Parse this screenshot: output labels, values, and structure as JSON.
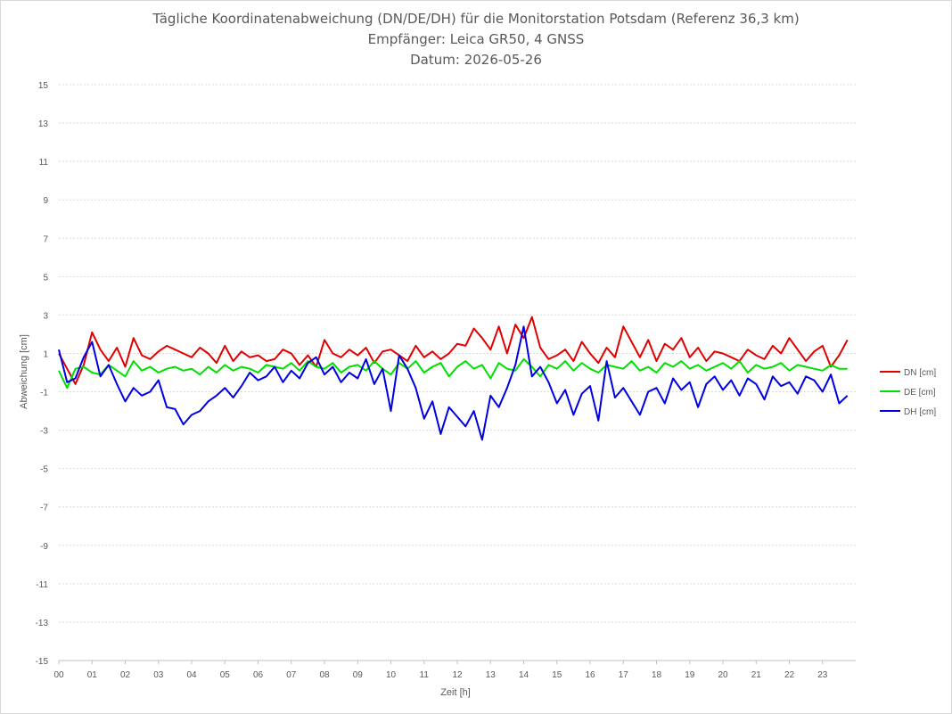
{
  "chart_data": {
    "type": "line",
    "title_lines": [
      "Tägliche Koordinatenabweichung (DN/DE/DH) für die Monitorstation Potsdam (Referenz 36,3 km)",
      "Empfänger: Leica GR50, 4 GNSS",
      "Datum: 2026-05-26"
    ],
    "xlabel": "Zeit [h]",
    "ylabel": "Abweichung [cm]",
    "xlim": [
      0,
      24
    ],
    "ylim": [
      -15,
      15
    ],
    "x_ticks": [
      "00",
      "01",
      "02",
      "03",
      "04",
      "05",
      "06",
      "07",
      "08",
      "09",
      "10",
      "11",
      "12",
      "13",
      "14",
      "15",
      "16",
      "17",
      "18",
      "19",
      "20",
      "21",
      "22",
      "23"
    ],
    "y_ticks": [
      15,
      13,
      11,
      9,
      7,
      5,
      3,
      1,
      -1,
      -3,
      -5,
      -7,
      -9,
      -11,
      -13,
      -15
    ],
    "grid": "horizontal dashed",
    "legend_position": "right",
    "x_hours": [
      0,
      0.25,
      0.5,
      0.75,
      1,
      1.25,
      1.5,
      1.75,
      2,
      2.25,
      2.5,
      2.75,
      3,
      3.25,
      3.5,
      3.75,
      4,
      4.25,
      4.5,
      4.75,
      5,
      5.25,
      5.5,
      5.75,
      6,
      6.25,
      6.5,
      6.75,
      7,
      7.25,
      7.5,
      7.75,
      8,
      8.25,
      8.5,
      8.75,
      9,
      9.25,
      9.5,
      9.75,
      10,
      10.25,
      10.5,
      10.75,
      11,
      11.25,
      11.5,
      11.75,
      12,
      12.25,
      12.5,
      12.75,
      13,
      13.25,
      13.5,
      13.75,
      14,
      14.25,
      14.5,
      14.75,
      15,
      15.25,
      15.5,
      15.75,
      16,
      16.25,
      16.5,
      16.75,
      17,
      17.25,
      17.5,
      17.75,
      18,
      18.25,
      18.5,
      18.75,
      19,
      19.25,
      19.5,
      19.75,
      20,
      20.25,
      20.5,
      20.75,
      21,
      21.25,
      21.5,
      21.75,
      22,
      22.25,
      22.5,
      22.75,
      23,
      23.25,
      23.5,
      23.75
    ],
    "series": [
      {
        "name": "DN [cm]",
        "color": "#e00000",
        "values": [
          1.0,
          0.2,
          -0.6,
          0.4,
          2.1,
          1.2,
          0.6,
          1.3,
          0.3,
          1.8,
          0.9,
          0.7,
          1.1,
          1.4,
          1.2,
          1.0,
          0.8,
          1.3,
          1.0,
          0.5,
          1.4,
          0.6,
          1.1,
          0.8,
          0.9,
          0.6,
          0.7,
          1.2,
          1.0,
          0.4,
          0.9,
          0.3,
          1.7,
          1.0,
          0.8,
          1.2,
          0.9,
          1.3,
          0.5,
          1.1,
          1.2,
          0.9,
          0.6,
          1.4,
          0.8,
          1.1,
          0.7,
          1.0,
          1.5,
          1.4,
          2.3,
          1.8,
          1.2,
          2.4,
          1.0,
          2.5,
          1.8,
          2.9,
          1.3,
          0.7,
          0.9,
          1.2,
          0.6,
          1.6,
          1.0,
          0.5,
          1.3,
          0.8,
          2.4,
          1.6,
          0.8,
          1.7,
          0.6,
          1.5,
          1.2,
          1.8,
          0.8,
          1.3,
          0.6,
          1.1,
          1.0,
          0.8,
          0.6,
          1.2,
          0.9,
          0.7,
          1.4,
          1.0,
          1.8,
          1.2,
          0.6,
          1.1,
          1.4,
          0.3,
          0.9,
          1.7
        ]
      },
      {
        "name": "DE [cm]",
        "color": "#00e000",
        "values": [
          0.1,
          -0.8,
          0.2,
          0.3,
          0.0,
          -0.1,
          0.4,
          0.1,
          -0.2,
          0.6,
          0.1,
          0.3,
          0.0,
          0.2,
          0.3,
          0.1,
          0.2,
          -0.1,
          0.3,
          0.0,
          0.4,
          0.1,
          0.3,
          0.2,
          0.0,
          0.4,
          0.3,
          0.2,
          0.5,
          0.1,
          0.6,
          0.3,
          0.2,
          0.5,
          0.0,
          0.3,
          0.4,
          0.1,
          0.6,
          0.2,
          -0.1,
          0.5,
          0.2,
          0.6,
          0.0,
          0.3,
          0.5,
          -0.2,
          0.3,
          0.6,
          0.2,
          0.4,
          -0.3,
          0.5,
          0.2,
          0.1,
          0.7,
          0.3,
          -0.2,
          0.4,
          0.2,
          0.6,
          0.1,
          0.5,
          0.2,
          0.0,
          0.4,
          0.3,
          0.2,
          0.6,
          0.1,
          0.3,
          0.0,
          0.5,
          0.3,
          0.6,
          0.2,
          0.4,
          0.1,
          0.3,
          0.5,
          0.2,
          0.6,
          0.0,
          0.4,
          0.2,
          0.3,
          0.5,
          0.1,
          0.4,
          0.3,
          0.2,
          0.1,
          0.4,
          0.2,
          0.2
        ]
      },
      {
        "name": "DH [cm]",
        "color": "#0000e0",
        "values": [
          1.2,
          -0.5,
          -0.3,
          0.8,
          1.6,
          -0.2,
          0.4,
          -0.6,
          -1.5,
          -0.8,
          -1.2,
          -1.0,
          -0.4,
          -1.8,
          -1.9,
          -2.7,
          -2.2,
          -2.0,
          -1.5,
          -1.2,
          -0.8,
          -1.3,
          -0.7,
          0.0,
          -0.4,
          -0.2,
          0.3,
          -0.5,
          0.1,
          -0.3,
          0.5,
          0.8,
          -0.1,
          0.3,
          -0.5,
          0.0,
          -0.3,
          0.7,
          -0.6,
          0.2,
          -2.0,
          0.9,
          0.2,
          -0.8,
          -2.4,
          -1.5,
          -3.2,
          -1.8,
          -2.3,
          -2.8,
          -2.0,
          -3.5,
          -1.2,
          -1.8,
          -0.8,
          0.4,
          2.4,
          -0.2,
          0.3,
          -0.5,
          -1.6,
          -0.9,
          -2.2,
          -1.1,
          -0.7,
          -2.5,
          0.6,
          -1.3,
          -0.8,
          -1.5,
          -2.2,
          -1.0,
          -0.8,
          -1.6,
          -0.3,
          -0.9,
          -0.5,
          -1.8,
          -0.6,
          -0.2,
          -0.9,
          -0.4,
          -1.2,
          -0.3,
          -0.6,
          -1.4,
          -0.2,
          -0.7,
          -0.5,
          -1.1,
          -0.2,
          -0.4,
          -1.0,
          -0.1,
          -1.6,
          -1.2
        ]
      }
    ]
  }
}
